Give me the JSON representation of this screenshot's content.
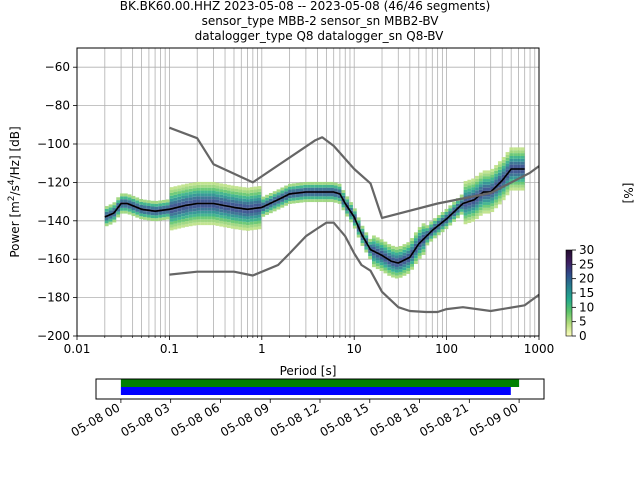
{
  "title_lines": [
    "BK.BK60.00.HHZ   2023-05-08 -- 2023-05-08  (46/46 segments)",
    "sensor_type MBB-2 sensor_sn MBB2-BV",
    "datalogger_type Q8 datalogger_sn Q8-BV"
  ],
  "chart_data": [
    {
      "type": "heatmap",
      "title": "BK.BK60.00.HHZ   2023-05-08 -- 2023-05-08  (46/46 segments)",
      "xlabel": "Period [s]",
      "ylabel": "Power [m²/s⁴/Hz] [dB]",
      "x_scale": "log",
      "xlim": [
        0.01,
        1000
      ],
      "ylim": [
        -200,
        -50
      ],
      "x_ticks": [
        0.01,
        0.1,
        1,
        10,
        100,
        1000
      ],
      "x_tick_labels": [
        "0.01",
        "0.1",
        "1",
        "10",
        "100",
        "1000"
      ],
      "y_ticks": [
        -200,
        -180,
        -160,
        -140,
        -120,
        -100,
        -80,
        -60
      ],
      "y_tick_labels": [
        "−200",
        "−180",
        "−160",
        "−140",
        "−120",
        "−100",
        "−80",
        "−60"
      ],
      "grid": true,
      "colorbar": {
        "label": "[%]",
        "range": [
          0,
          30
        ],
        "ticks": [
          0,
          5,
          10,
          15,
          20,
          25,
          30
        ],
        "tick_labels": [
          "0",
          "5",
          "10",
          "15",
          "20",
          "25",
          "30"
        ],
        "colormap": [
          "#fefebd",
          "#b5dd7e",
          "#5cc36a",
          "#23a88d",
          "#277f8e",
          "#2f4c8a",
          "#3e1e5f",
          "#240c2e"
        ]
      },
      "series": [
        {
          "name": "",
          "color": "#000000",
          "x": [
            0.02,
            0.025,
            0.03,
            0.035,
            0.05,
            0.07,
            0.1,
            0.15,
            0.2,
            0.3,
            0.5,
            0.7,
            1,
            1.5,
            2,
            3,
            4,
            5,
            6,
            7,
            8,
            10,
            12,
            15,
            20,
            25,
            30,
            40,
            50,
            70,
            100,
            150,
            200,
            250,
            300,
            400,
            500,
            700
          ],
          "y": [
            -138,
            -136,
            -131,
            -131,
            -134,
            -135,
            -134,
            -132,
            -131,
            -131,
            -133,
            -134,
            -133,
            -129,
            -126,
            -125,
            -125,
            -125,
            -125,
            -126,
            -131,
            -138,
            -147,
            -155,
            -158,
            -161,
            -162,
            -159,
            -152,
            -145,
            -139,
            -131,
            -129,
            -125,
            -125,
            -119,
            -113,
            -113
          ]
        },
        {
          "name": "",
          "color": "#666666",
          "x": [
            0.1,
            0.2,
            0.3,
            0.8,
            3.8,
            4.5,
            6,
            10,
            15,
            20,
            80,
            300,
            800,
            1000
          ],
          "y": [
            -91.5,
            -97,
            -110.5,
            -120,
            -98,
            -96.5,
            -101,
            -113,
            -120.5,
            -138.5,
            -131,
            -125.5,
            -115,
            -111.5
          ]
        },
        {
          "name": "",
          "color": "#666666",
          "x": [
            0.1,
            0.2,
            0.5,
            0.8,
            1.5,
            2,
            3,
            4,
            5,
            6,
            8,
            10,
            12,
            15,
            20,
            30,
            40,
            60,
            80,
            100,
            150,
            300,
            700,
            1000
          ],
          "y": [
            -168,
            -166.5,
            -166.5,
            -168.5,
            -163,
            -157,
            -148,
            -144,
            -141,
            -141,
            -148,
            -157,
            -163,
            -166,
            -177,
            -185,
            -187,
            -187.5,
            -187.5,
            -186,
            -185,
            -187,
            -184,
            -178.5
          ]
        }
      ]
    },
    {
      "type": "bar",
      "x_tick_labels": [
        "05-08 00",
        "05-08 03",
        "05-08 06",
        "05-08 09",
        "05-08 12",
        "05-08 15",
        "05-08 18",
        "05-08 21",
        "05-09 00"
      ],
      "x_range_hours": [
        -1.5,
        25.5
      ],
      "series": [
        {
          "name": "",
          "color": "#008000",
          "start_hour": 0,
          "end_hour": 24.0
        },
        {
          "name": "",
          "color": "#0000ff",
          "start_hour": 0,
          "end_hour": 23.5
        }
      ]
    }
  ]
}
